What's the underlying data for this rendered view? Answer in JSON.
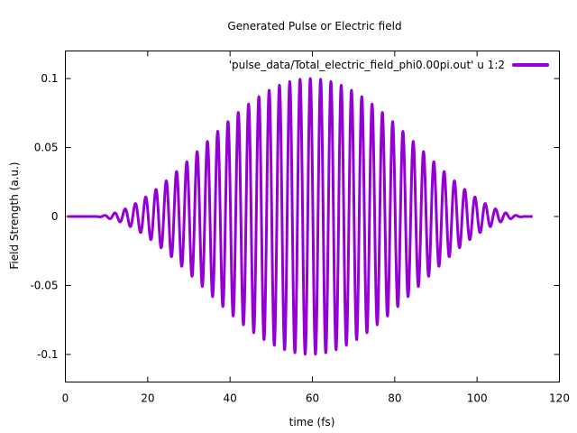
{
  "chart_data": {
    "type": "line",
    "title": "Generated Pulse or Electric field",
    "xlabel": "time (fs)",
    "ylabel": "Field Strength (a.u.)",
    "xlim": [
      0,
      120
    ],
    "ylim": [
      -0.12,
      0.12
    ],
    "x_ticks": [
      0,
      20,
      40,
      60,
      80,
      100,
      120
    ],
    "x_tick_labels": [
      "0",
      "20",
      "40",
      "60",
      "80",
      "100",
      "120"
    ],
    "y_ticks": [
      0.1,
      0.05,
      0,
      -0.05,
      -0.1
    ],
    "y_tick_labels": [
      "0.1",
      "0.05",
      "0",
      "-0.05",
      "-0.1"
    ],
    "grid": false,
    "legend_position": "top-right",
    "series": [
      {
        "name": "'pulse_data/Total_electric_field_phi0.00pi.out' u 1:2",
        "color": "#9400d3",
        "pulse": {
          "amplitude": 0.1,
          "center_fs": 59.5,
          "start_fs": 7,
          "end_fs": 113,
          "period_fs": 2.5,
          "phase_pi": 0.0
        }
      }
    ]
  }
}
